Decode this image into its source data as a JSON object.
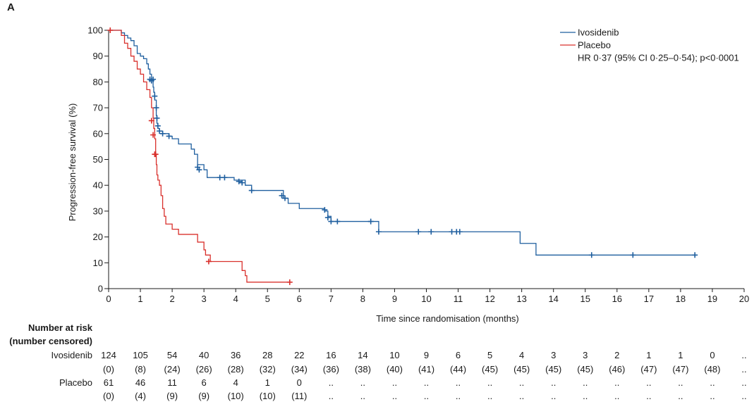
{
  "panel_label": "A",
  "colors": {
    "ivosidenib": "#1f5f9f",
    "placebo": "#d9302c",
    "axis": "#1a1a1a"
  },
  "chart_data": {
    "type": "line",
    "subtype": "kaplan-meier",
    "title": "",
    "xlabel": "Time since randomisation (months)",
    "ylabel": "Progression-free survival (%)",
    "xlim": [
      0,
      20
    ],
    "ylim": [
      0,
      100
    ],
    "xticks": [
      0,
      1,
      2,
      3,
      4,
      5,
      6,
      7,
      8,
      9,
      10,
      11,
      12,
      13,
      14,
      15,
      16,
      17,
      18,
      19,
      20
    ],
    "yticks": [
      0,
      10,
      20,
      30,
      40,
      50,
      60,
      70,
      80,
      90,
      100
    ],
    "grid": false,
    "legend_position": "top-right",
    "annotation": "HR 0·37 (95% CI 0·25–0·54); p<0·0001",
    "series": [
      {
        "name": "Ivosidenib",
        "color": "#1f5f9f",
        "steps": [
          [
            0,
            100
          ],
          [
            0.35,
            100
          ],
          [
            0.4,
            99
          ],
          [
            0.5,
            98
          ],
          [
            0.6,
            97
          ],
          [
            0.7,
            96
          ],
          [
            0.8,
            94
          ],
          [
            0.9,
            91
          ],
          [
            1.0,
            90
          ],
          [
            1.1,
            89
          ],
          [
            1.2,
            87
          ],
          [
            1.25,
            85
          ],
          [
            1.3,
            83
          ],
          [
            1.35,
            81
          ],
          [
            1.4,
            78
          ],
          [
            1.42,
            76
          ],
          [
            1.45,
            73
          ],
          [
            1.5,
            67
          ],
          [
            1.52,
            64
          ],
          [
            1.55,
            62
          ],
          [
            1.6,
            61
          ],
          [
            1.7,
            60
          ],
          [
            1.9,
            59
          ],
          [
            2.0,
            58
          ],
          [
            2.2,
            56
          ],
          [
            2.6,
            54
          ],
          [
            2.7,
            52
          ],
          [
            2.8,
            48
          ],
          [
            3.0,
            46
          ],
          [
            3.1,
            43
          ],
          [
            3.6,
            43
          ],
          [
            3.95,
            42
          ],
          [
            4.3,
            40
          ],
          [
            4.5,
            38
          ],
          [
            5.3,
            38
          ],
          [
            5.5,
            35
          ],
          [
            5.65,
            33
          ],
          [
            6.0,
            31
          ],
          [
            6.8,
            30
          ],
          [
            6.9,
            28
          ],
          [
            7.0,
            26
          ],
          [
            8.4,
            26
          ],
          [
            8.5,
            22
          ],
          [
            12.9,
            22
          ],
          [
            12.95,
            17.5
          ],
          [
            13.35,
            17.5
          ],
          [
            13.45,
            13
          ],
          [
            18.45,
            13
          ]
        ],
        "censored": [
          [
            1.3,
            81
          ],
          [
            1.35,
            80.5
          ],
          [
            1.4,
            81
          ],
          [
            1.45,
            74.5
          ],
          [
            1.5,
            70
          ],
          [
            1.52,
            66
          ],
          [
            1.55,
            63
          ],
          [
            1.6,
            61
          ],
          [
            1.7,
            60
          ],
          [
            1.9,
            59
          ],
          [
            2.8,
            47
          ],
          [
            2.85,
            46
          ],
          [
            3.5,
            43
          ],
          [
            3.65,
            43
          ],
          [
            4.1,
            41.5
          ],
          [
            4.2,
            41
          ],
          [
            4.5,
            38
          ],
          [
            5.45,
            36
          ],
          [
            5.55,
            35
          ],
          [
            6.8,
            30.5
          ],
          [
            6.9,
            27.5
          ],
          [
            7.0,
            26
          ],
          [
            7.2,
            26
          ],
          [
            8.25,
            26
          ],
          [
            8.5,
            22
          ],
          [
            9.75,
            22
          ],
          [
            10.15,
            22
          ],
          [
            10.8,
            22
          ],
          [
            10.95,
            22
          ],
          [
            11.05,
            22
          ],
          [
            15.2,
            13
          ],
          [
            16.5,
            13
          ],
          [
            18.45,
            13
          ]
        ]
      },
      {
        "name": "Placebo",
        "color": "#d9302c",
        "steps": [
          [
            0,
            100
          ],
          [
            0.4,
            98
          ],
          [
            0.5,
            95
          ],
          [
            0.6,
            93
          ],
          [
            0.7,
            90
          ],
          [
            0.8,
            88
          ],
          [
            0.9,
            85
          ],
          [
            1.0,
            83
          ],
          [
            1.1,
            80
          ],
          [
            1.2,
            77
          ],
          [
            1.3,
            74
          ],
          [
            1.35,
            70
          ],
          [
            1.4,
            66
          ],
          [
            1.42,
            62
          ],
          [
            1.45,
            58
          ],
          [
            1.48,
            52
          ],
          [
            1.5,
            48
          ],
          [
            1.52,
            44
          ],
          [
            1.55,
            42
          ],
          [
            1.6,
            40
          ],
          [
            1.65,
            36
          ],
          [
            1.7,
            31
          ],
          [
            1.75,
            28
          ],
          [
            1.8,
            25
          ],
          [
            2.0,
            23
          ],
          [
            2.2,
            21
          ],
          [
            2.75,
            21
          ],
          [
            2.8,
            18
          ],
          [
            3.0,
            15
          ],
          [
            3.05,
            13
          ],
          [
            3.2,
            10.5
          ],
          [
            4.1,
            10.5
          ],
          [
            4.2,
            7
          ],
          [
            4.3,
            5
          ],
          [
            4.35,
            2.5
          ],
          [
            5.7,
            2.5
          ]
        ],
        "censored": [
          [
            0.05,
            100
          ],
          [
            1.35,
            65
          ],
          [
            1.4,
            59.5
          ],
          [
            1.45,
            52
          ],
          [
            1.48,
            52
          ],
          [
            3.15,
            10.5
          ],
          [
            5.7,
            2.5
          ]
        ]
      }
    ]
  },
  "risk_table": {
    "heading_line1": "Number at risk",
    "heading_line2": "(number censored)",
    "rows": [
      {
        "name": "Ivosidenib",
        "at_risk": [
          "124",
          "105",
          "54",
          "40",
          "36",
          "28",
          "22",
          "16",
          "14",
          "10",
          "9",
          "6",
          "5",
          "4",
          "3",
          "3",
          "2",
          "1",
          "1",
          "0",
          ".."
        ],
        "censored": [
          "(0)",
          "(8)",
          "(24)",
          "(26)",
          "(28)",
          "(32)",
          "(34)",
          "(36)",
          "(38)",
          "(40)",
          "(41)",
          "(44)",
          "(45)",
          "(45)",
          "(45)",
          "(45)",
          "(46)",
          "(47)",
          "(47)",
          "(48)",
          ".."
        ]
      },
      {
        "name": "Placebo",
        "at_risk": [
          "61",
          "46",
          "11",
          "6",
          "4",
          "1",
          "0",
          "..",
          "..",
          "..",
          "..",
          "..",
          "..",
          "..",
          "..",
          "..",
          "..",
          "..",
          "..",
          "..",
          ".."
        ],
        "censored": [
          "(0)",
          "(4)",
          "(9)",
          "(9)",
          "(10)",
          "(10)",
          "(11)",
          "..",
          "..",
          "..",
          "..",
          "..",
          "..",
          "..",
          "..",
          "..",
          "..",
          "..",
          "..",
          "..",
          ".."
        ]
      }
    ]
  }
}
